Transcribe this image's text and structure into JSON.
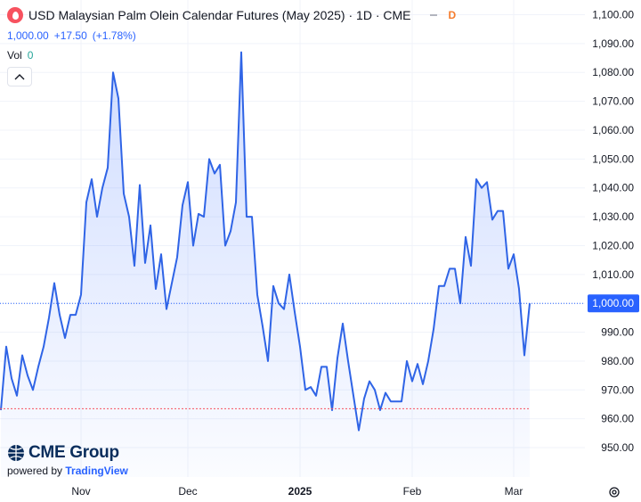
{
  "header": {
    "title": "USD Malaysian Palm Olein Calendar Futures (May 2025) · 1D · CME",
    "badge": "D",
    "price": "1,000.00",
    "change": "+17.50",
    "change_pct": "(+1.78%)",
    "vol_label": "Vol",
    "vol_value": "0"
  },
  "logo": {
    "brand": "CME Group",
    "powered_by": "powered by",
    "provider": "TradingView"
  },
  "colors": {
    "line": "#2f64e6",
    "fill": "#2962ff",
    "price_label": "#2962ff",
    "bad_red": "#f7525f"
  },
  "chart_data": {
    "type": "area",
    "ylim": [
      944,
      1102
    ],
    "y_ticks": [
      "1,100.00",
      "1,090.00",
      "1,080.00",
      "1,070.00",
      "1,060.00",
      "1,050.00",
      "1,040.00",
      "1,030.00",
      "1,020.00",
      "1,010.00",
      "1,000.00",
      "990.00",
      "980.00",
      "970.00",
      "960.00",
      "950.00"
    ],
    "y_tick_values": [
      1100,
      1090,
      1080,
      1070,
      1060,
      1050,
      1040,
      1030,
      1020,
      1010,
      1000,
      990,
      980,
      970,
      960,
      950
    ],
    "x_ticks": [
      {
        "label": "Nov",
        "index": 15
      },
      {
        "label": "Dec",
        "index": 35
      },
      {
        "label": "2025",
        "index": 56
      },
      {
        "label": "Feb",
        "index": 77
      },
      {
        "label": "Mar",
        "index": 96
      }
    ],
    "last_price_label": "1,000.00",
    "last_price": 1000,
    "prev_close": 963.5,
    "grid": true,
    "series": [
      {
        "values": [
          963,
          985,
          974,
          968,
          982,
          975,
          970,
          978,
          985,
          995,
          1007,
          996,
          988,
          996,
          996,
          1003,
          1035,
          1043,
          1030,
          1040,
          1047,
          1080,
          1071,
          1038,
          1030,
          1013,
          1041,
          1014,
          1027,
          1005,
          1017,
          998,
          1007,
          1016,
          1034,
          1042,
          1020,
          1031,
          1030,
          1050,
          1045,
          1048,
          1020,
          1025,
          1035,
          1087,
          1030,
          1030,
          1003,
          992,
          980,
          1006,
          1000,
          998,
          1010,
          997,
          985,
          970,
          971,
          968,
          978,
          978,
          963,
          981,
          993,
          980,
          968,
          956,
          967,
          973,
          970,
          963,
          969,
          966,
          966,
          966,
          980,
          973,
          979,
          972,
          980,
          991,
          1006,
          1006,
          1012,
          1012,
          1000,
          1023,
          1013,
          1043,
          1040,
          1042,
          1029,
          1032,
          1032,
          1012,
          1017,
          1005,
          982,
          1000
        ]
      }
    ]
  }
}
